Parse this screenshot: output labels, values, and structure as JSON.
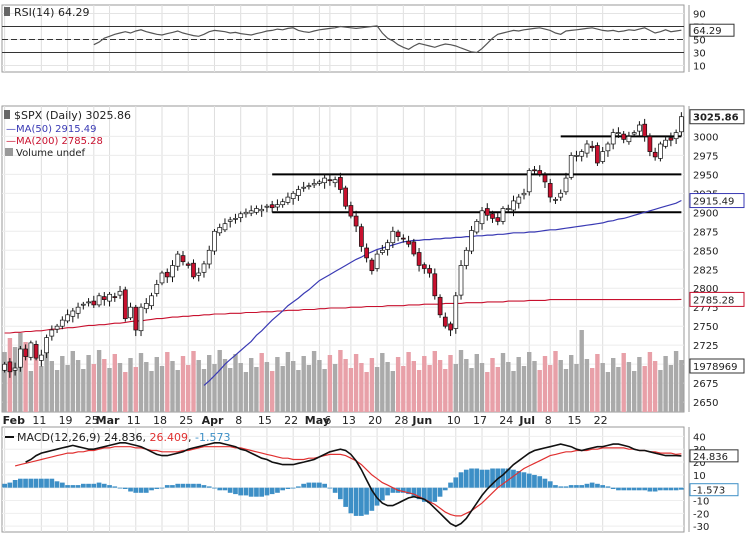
{
  "chart_data": [
    {
      "type": "line",
      "panel": "rsi",
      "legend": "RSI(14) 64.29",
      "ylim": [
        0,
        100
      ],
      "yticks": [
        90,
        70,
        50,
        30,
        10
      ],
      "reference_levels": [
        70,
        50,
        30
      ],
      "last_value_label": "64.29",
      "series": [
        {
          "name": "RSI(14)",
          "values": [
            42,
            46,
            52,
            55,
            58,
            60,
            62,
            60,
            63,
            65,
            62,
            60,
            58,
            57,
            59,
            61,
            63,
            60,
            58,
            56,
            55,
            58,
            62,
            64,
            63,
            62,
            60,
            61,
            59,
            58,
            57,
            59,
            61,
            63,
            64,
            66,
            65,
            67,
            68,
            64,
            62,
            61,
            63,
            65,
            66,
            67,
            68,
            70,
            69,
            68,
            67,
            68,
            69,
            70,
            71,
            60,
            52,
            48,
            42,
            38,
            35,
            40,
            44,
            42,
            40,
            38,
            41,
            43,
            42,
            40,
            37,
            34,
            31,
            30,
            36,
            44,
            52,
            58,
            60,
            62,
            64,
            63,
            65,
            66,
            67,
            68,
            66,
            64,
            60,
            58,
            63,
            64,
            65,
            66,
            67,
            68,
            66,
            64,
            63,
            64,
            62,
            63,
            65,
            64,
            66,
            68,
            64,
            60,
            62,
            65,
            62,
            63,
            64.29
          ]
        }
      ],
      "color": "#555555"
    },
    {
      "type": "candlestick",
      "panel": "price",
      "legend": {
        "symbol": "$SPX (Daily) 3025.86",
        "ma50": "MA(50) 2915.49",
        "ma200": "MA(200) 2785.28",
        "volume": "Volume undef"
      },
      "ylim": [
        2637,
        3040
      ],
      "yticks": [
        3000,
        2975,
        2950,
        2925,
        2900,
        2875,
        2850,
        2825,
        2800,
        2775,
        2750,
        2725,
        2700,
        2675,
        2650
      ],
      "xtick_labels": [
        "Feb",
        "11",
        "19",
        "25",
        "Mar",
        "11",
        "18",
        "25",
        "Apr",
        "8",
        "15",
        "22",
        "May",
        "6",
        "13",
        "20",
        "28",
        "Jun",
        "10",
        "17",
        "24",
        "Jul",
        "8",
        "15",
        "22"
      ],
      "xtick_bold": [
        "Feb",
        "Mar",
        "Apr",
        "May",
        "Jun",
        "Jul"
      ],
      "xtick_bar_index": [
        0,
        7,
        12,
        17,
        20,
        25,
        30,
        35,
        40,
        45,
        50,
        55,
        60,
        62,
        66,
        71,
        76,
        80,
        86,
        91,
        96,
        100,
        104,
        109,
        114
      ],
      "horizontal_lines": [
        3000,
        2950,
        2900
      ],
      "close": [
        2700,
        2690,
        2695,
        2720,
        2710,
        2728,
        2708,
        2712,
        2735,
        2745,
        2750,
        2758,
        2765,
        2770,
        2775,
        2779,
        2782,
        2778,
        2790,
        2785,
        2792,
        2788,
        2796,
        2760,
        2775,
        2745,
        2775,
        2780,
        2790,
        2805,
        2820,
        2815,
        2830,
        2845,
        2835,
        2830,
        2815,
        2820,
        2832,
        2850,
        2875,
        2880,
        2885,
        2890,
        2892,
        2898,
        2900,
        2902,
        2905,
        2904,
        2908,
        2906,
        2910,
        2914,
        2920,
        2925,
        2930,
        2933,
        2935,
        2938,
        2940,
        2945,
        2942,
        2943,
        2930,
        2908,
        2895,
        2882,
        2855,
        2840,
        2823,
        2845,
        2850,
        2860,
        2875,
        2868,
        2865,
        2858,
        2845,
        2830,
        2826,
        2820,
        2790,
        2765,
        2750,
        2745,
        2790,
        2830,
        2850,
        2876,
        2888,
        2902,
        2896,
        2892,
        2888,
        2905,
        2905,
        2915,
        2920,
        2925,
        2955,
        2955,
        2950,
        2940,
        2920,
        2917,
        2925,
        2945,
        2975,
        2975,
        2980,
        2990,
        2985,
        2965,
        2980,
        2990,
        3005,
        3005,
        2996,
        3000,
        3005,
        3015,
        3000,
        2980,
        2973,
        2990,
        2995,
        2995,
        3005,
        3025.86
      ],
      "ma50": [
        2672,
        2678,
        2685,
        2692,
        2700,
        2706,
        2712,
        2718,
        2724,
        2730,
        2738,
        2744,
        2751,
        2758,
        2764,
        2770,
        2777,
        2782,
        2787,
        2793,
        2798,
        2804,
        2810,
        2814,
        2818,
        2822,
        2826,
        2830,
        2834,
        2838,
        2841,
        2845,
        2848,
        2851,
        2853,
        2855,
        2857,
        2859,
        2861,
        2862,
        2863,
        2863,
        2864,
        2864,
        2865,
        2865,
        2866,
        2866,
        2867,
        2867,
        2868,
        2868,
        2869,
        2869,
        2870,
        2870,
        2871,
        2871,
        2872,
        2873,
        2873,
        2873,
        2874,
        2874,
        2875,
        2876,
        2877,
        2877,
        2878,
        2879,
        2880,
        2881,
        2882,
        2883,
        2884,
        2885,
        2886,
        2888,
        2889,
        2891,
        2892,
        2894,
        2896,
        2898,
        2900,
        2902,
        2904,
        2906,
        2908,
        2910,
        2912,
        2915.49
      ],
      "ma50_start_index": 38,
      "ma200": [
        2741,
        2741,
        2742,
        2742,
        2743,
        2743,
        2744,
        2744,
        2745,
        2746,
        2746,
        2747,
        2748,
        2748,
        2749,
        2750,
        2751,
        2751,
        2752,
        2752,
        2753,
        2754,
        2754,
        2755,
        2756,
        2757,
        2757,
        2758,
        2759,
        2760,
        2760,
        2761,
        2762,
        2762,
        2763,
        2763,
        2764,
        2764,
        2765,
        2765,
        2766,
        2766,
        2766,
        2767,
        2767,
        2767,
        2768,
        2768,
        2768,
        2769,
        2769,
        2769,
        2770,
        2770,
        2771,
        2771,
        2771,
        2772,
        2772,
        2772,
        2773,
        2773,
        2774,
        2774,
        2774,
        2774,
        2775,
        2775,
        2775,
        2776,
        2776,
        2776,
        2776,
        2777,
        2777,
        2777,
        2777,
        2778,
        2778,
        2778,
        2779,
        2779,
        2779,
        2779,
        2780,
        2780,
        2780,
        2780,
        2781,
        2781,
        2781,
        2781,
        2782,
        2782,
        2782,
        2782,
        2783,
        2783,
        2783,
        2783,
        2784,
        2784,
        2784,
        2784,
        2785,
        2785,
        2785,
        2785,
        2785,
        2785,
        2785,
        2785,
        2785,
        2785,
        2785,
        2785,
        2785,
        2785,
        2785,
        2785,
        2785,
        2785,
        2785,
        2785,
        2785,
        2785,
        2785,
        2785,
        2785,
        2785.28
      ],
      "last_price_label": "3025.86",
      "ma50_label": "2915.49",
      "ma200_label": "2785.28",
      "volume_label": "1978969",
      "colors": {
        "up": "#ffffff",
        "down": "#c8102e",
        "ma50": "#3a3ab4",
        "ma200": "#c8102e",
        "volume_up": "#aaaaaa",
        "volume_down": "#e8a0a8"
      }
    },
    {
      "type": "line",
      "panel": "macd",
      "legend": {
        "name": "MACD(12,26,9)",
        "macd": "24.836",
        "signal": "26.409",
        "hist": "-1.573"
      },
      "ylim": [
        -33,
        45
      ],
      "yticks": [
        40,
        30,
        20,
        10,
        0,
        -10,
        -20,
        -30
      ],
      "last_value_labels": {
        "macd": "24.836",
        "hist": "-1.573"
      },
      "series": [
        {
          "name": "MACD",
          "values": [
            20,
            22,
            25,
            27,
            28,
            29,
            30,
            31,
            32,
            33,
            32,
            31,
            30,
            30,
            31,
            32,
            33,
            34,
            35,
            35,
            34,
            33,
            32,
            30,
            28,
            26,
            25,
            25,
            26,
            27,
            28,
            30,
            31,
            32,
            33,
            34,
            35,
            35,
            34,
            33,
            32,
            30,
            29,
            27,
            25,
            23,
            22,
            20,
            19,
            18,
            18,
            18,
            19,
            20,
            21,
            22,
            24,
            26,
            28,
            29,
            30,
            29,
            26,
            21,
            14,
            6,
            -2,
            -8,
            -12,
            -14,
            -14,
            -12,
            -10,
            -8,
            -7,
            -8,
            -9,
            -12,
            -16,
            -20,
            -24,
            -28,
            -30,
            -28,
            -24,
            -18,
            -12,
            -6,
            -1,
            3,
            7,
            10,
            14,
            18,
            21,
            24,
            27,
            29,
            30,
            31,
            32,
            33,
            34,
            33,
            32,
            30,
            29,
            30,
            31,
            32,
            32,
            33,
            34,
            34,
            33,
            32,
            30,
            29,
            29,
            28,
            27,
            26,
            25,
            25,
            25,
            24.836
          ]
        },
        {
          "name": "Signal",
          "values": [
            17,
            18,
            19,
            20,
            21,
            22,
            23,
            24,
            25,
            26,
            27,
            27,
            28,
            28,
            29,
            29,
            30,
            31,
            31,
            32,
            32,
            32,
            32,
            31,
            31,
            30,
            29,
            29,
            28,
            28,
            28,
            28,
            29,
            29,
            30,
            31,
            32,
            32,
            32,
            32,
            32,
            32,
            31,
            31,
            30,
            29,
            28,
            27,
            26,
            25,
            24,
            23,
            23,
            22,
            22,
            22,
            23,
            23,
            24,
            25,
            26,
            26,
            26,
            25,
            23,
            21,
            18,
            14,
            10,
            7,
            4,
            2,
            0,
            -2,
            -3,
            -4,
            -5,
            -7,
            -9,
            -11,
            -13,
            -16,
            -19,
            -21,
            -22,
            -22,
            -20,
            -18,
            -15,
            -12,
            -8,
            -4,
            0,
            3,
            6,
            9,
            12,
            15,
            17,
            19,
            21,
            23,
            25,
            26,
            27,
            28,
            28,
            29,
            29,
            29,
            30,
            30,
            31,
            31,
            31,
            31,
            31,
            30,
            30,
            29,
            29,
            28,
            28,
            27,
            27,
            27,
            26,
            26.409
          ]
        }
      ],
      "histogram": [
        3,
        4,
        6,
        7,
        7,
        7,
        7,
        7,
        7,
        7,
        5,
        4,
        2,
        2,
        2,
        3,
        3,
        3,
        4,
        3,
        2,
        1,
        0,
        -1,
        -3,
        -4,
        -4,
        -4,
        -2,
        -1,
        0,
        2,
        2,
        3,
        3,
        3,
        3,
        3,
        2,
        1,
        0,
        -2,
        -2,
        -4,
        -5,
        -6,
        -6,
        -7,
        -7,
        -7,
        -6,
        -5,
        -4,
        -2,
        -1,
        0,
        1,
        3,
        4,
        4,
        4,
        3,
        0,
        -4,
        -9,
        -15,
        -20,
        -22,
        -22,
        -21,
        -18,
        -14,
        -10,
        -6,
        -4,
        -4,
        -4,
        -5,
        -7,
        -9,
        -11,
        -12,
        -11,
        -7,
        -2,
        4,
        8,
        12,
        14,
        15,
        15,
        14,
        14,
        15,
        15,
        15,
        15,
        14,
        13,
        12,
        11,
        10,
        9,
        7,
        5,
        2,
        1,
        1,
        2,
        2,
        2,
        3,
        4,
        3,
        2,
        1,
        -1,
        -2,
        -2,
        -2,
        -2,
        -2,
        -2,
        -3,
        -3,
        -2,
        -2,
        -2,
        -2,
        -1.573
      ],
      "colors": {
        "macd": "#111111",
        "signal": "#e03030",
        "hist": "#3d8fc6"
      }
    }
  ]
}
